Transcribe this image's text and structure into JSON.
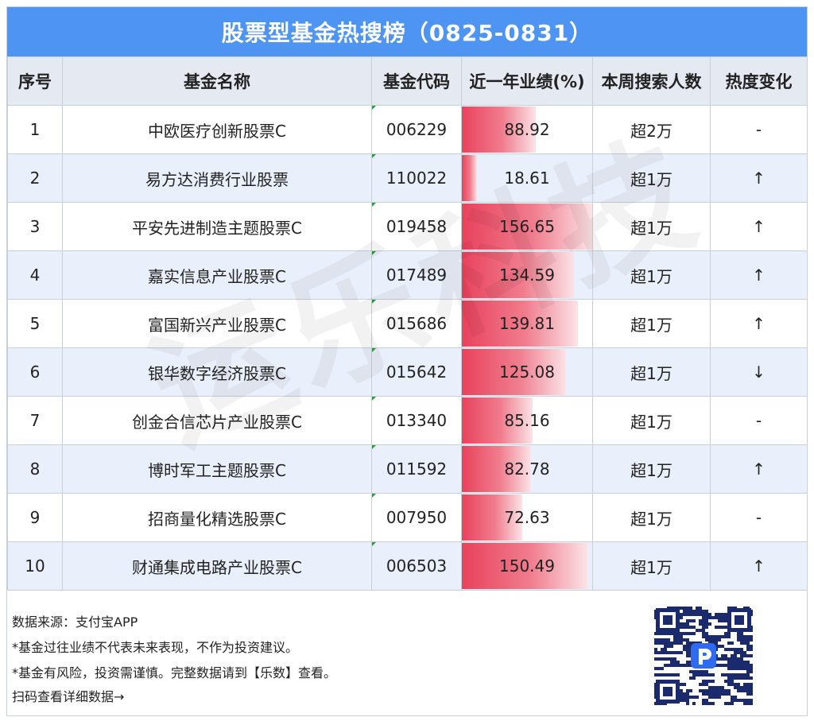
{
  "title": "股票型基金热搜榜（0825-0831）",
  "headers": [
    "序号",
    "基金名称",
    "基金代码",
    "近一年业绩(%)",
    "本周搜索人数",
    "热度变化"
  ],
  "rows": [
    {
      "rank": "1",
      "name": "中欧医疗创新股票C",
      "code": "006229",
      "perf": "88.92",
      "search": "超2万",
      "trend": "-"
    },
    {
      "rank": "2",
      "name": "易方达消费行业股票",
      "code": "110022",
      "perf": "18.61",
      "search": "超1万",
      "trend": "↑"
    },
    {
      "rank": "3",
      "name": "平安先进制造主题股票C",
      "code": "019458",
      "perf": "156.65",
      "search": "超1万",
      "trend": "↑"
    },
    {
      "rank": "4",
      "name": "嘉实信息产业股票C",
      "code": "017489",
      "perf": "134.59",
      "search": "超1万",
      "trend": "↑"
    },
    {
      "rank": "5",
      "name": "富国新兴产业股票C",
      "code": "015686",
      "perf": "139.81",
      "search": "超1万",
      "trend": "↑"
    },
    {
      "rank": "6",
      "name": "银华数字经济股票C",
      "code": "015642",
      "perf": "125.08",
      "search": "超1万",
      "trend": "↓"
    },
    {
      "rank": "7",
      "name": "创金合信芯片产业股票C",
      "code": "013340",
      "perf": "85.16",
      "search": "超1万",
      "trend": "-"
    },
    {
      "rank": "8",
      "name": "博时军工主题股票C",
      "code": "011592",
      "perf": "82.78",
      "search": "超1万",
      "trend": "↑"
    },
    {
      "rank": "9",
      "name": "招商量化精选股票C",
      "code": "007950",
      "perf": "72.63",
      "search": "超1万",
      "trend": "-"
    },
    {
      "rank": "10",
      "name": "财通集成电路产业股票C",
      "code": "006503",
      "perf": "150.49",
      "search": "超1万",
      "trend": "↑"
    }
  ],
  "footer": {
    "source": "数据来源：支付宝APP",
    "disclaimer1": "*基金过往业绩不代表未来表现，不作为投资建议。",
    "disclaimer2": "*基金有风险，投资需谨慎。完整数据请到【乐数】查看。",
    "scan": "扫码查看详细数据→"
  },
  "watermark": "运乐科技",
  "colors": {
    "header_bar": "#4e95f3",
    "bar": "#e8425c",
    "even_row": "#eaf0fb"
  }
}
